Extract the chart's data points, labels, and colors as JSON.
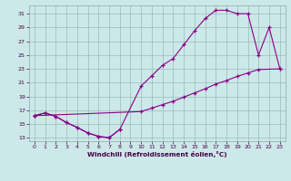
{
  "xlabel": "Windchill (Refroidissement éolien,°C)",
  "background_color": "#cce8e8",
  "line_color": "#880088",
  "grid_color": "#99bbbb",
  "xlim": [
    -0.5,
    23.5
  ],
  "ylim": [
    12.5,
    32.2
  ],
  "xticks": [
    0,
    1,
    2,
    3,
    4,
    5,
    6,
    7,
    8,
    9,
    10,
    11,
    12,
    13,
    14,
    15,
    16,
    17,
    18,
    19,
    20,
    21,
    22,
    23
  ],
  "yticks": [
    13,
    15,
    17,
    19,
    21,
    23,
    25,
    27,
    29,
    31
  ],
  "curve_upper_x": [
    0,
    1,
    2,
    3,
    4,
    5,
    6,
    7,
    8,
    10,
    11,
    12,
    13,
    14,
    15,
    16,
    17,
    18,
    19,
    20,
    21,
    22,
    23
  ],
  "curve_upper_y": [
    16.2,
    16.6,
    16.1,
    15.2,
    14.5,
    13.7,
    13.2,
    13.0,
    14.2,
    20.5,
    22.0,
    23.5,
    24.5,
    26.5,
    28.5,
    30.3,
    31.5,
    31.5,
    31.0,
    31.0,
    25.0,
    29.0,
    23.0
  ],
  "curve_lower_x": [
    0,
    1,
    2,
    3,
    4,
    5,
    6,
    7,
    8
  ],
  "curve_lower_y": [
    16.2,
    16.6,
    16.1,
    15.2,
    14.5,
    13.7,
    13.2,
    13.0,
    14.2
  ],
  "curve_diag_x": [
    0,
    10,
    11,
    12,
    13,
    14,
    15,
    16,
    17,
    18,
    19,
    20,
    21,
    23
  ],
  "curve_diag_y": [
    16.2,
    16.8,
    17.3,
    17.8,
    18.3,
    18.9,
    19.5,
    20.1,
    20.8,
    21.3,
    21.9,
    22.4,
    22.9,
    23.0
  ],
  "figsize": [
    3.2,
    2.0
  ],
  "dpi": 100
}
